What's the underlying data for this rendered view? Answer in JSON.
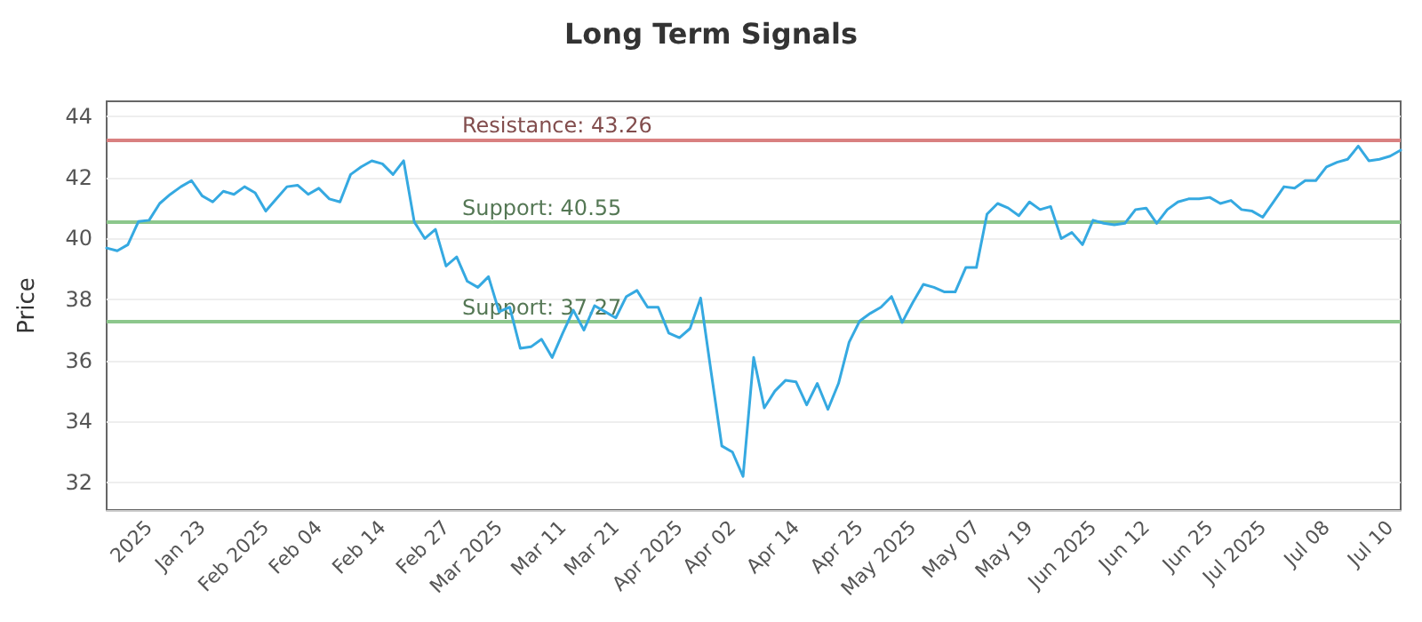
{
  "chart_data": {
    "type": "line",
    "title": "Long Term Signals",
    "ylabel": "Price",
    "categories": [
      null,
      null,
      null,
      null,
      "2025",
      null,
      null,
      null,
      null,
      "Jan 23",
      null,
      null,
      null,
      null,
      null,
      "Feb 2025",
      null,
      null,
      null,
      null,
      "Feb 04",
      null,
      null,
      null,
      null,
      null,
      "Feb 14",
      null,
      null,
      null,
      null,
      null,
      "Feb 27",
      null,
      null,
      null,
      null,
      "Mar 2025",
      null,
      null,
      null,
      null,
      null,
      "Mar 11",
      null,
      null,
      null,
      null,
      "Mar 21",
      null,
      null,
      null,
      null,
      null,
      "Apr 2025",
      null,
      null,
      null,
      null,
      "Apr 02",
      null,
      null,
      null,
      null,
      null,
      "Apr 14",
      null,
      null,
      null,
      null,
      null,
      "Apr 25",
      null,
      null,
      null,
      null,
      "May 2025",
      null,
      null,
      null,
      null,
      null,
      "May 07",
      null,
      null,
      null,
      null,
      "May 19",
      null,
      null,
      null,
      null,
      null,
      "Jun 2025",
      null,
      null,
      null,
      null,
      "Jun 12",
      null,
      null,
      null,
      null,
      null,
      "Jun 25",
      null,
      null,
      null,
      null,
      "Jul 2025",
      null,
      null,
      null,
      null,
      null,
      "Jul 08",
      null,
      null,
      null,
      null,
      null,
      "Jul 10",
      null
    ],
    "series": [
      {
        "color": "#35a9e1",
        "values": [
          39.69,
          39.6,
          39.8,
          40.56,
          40.6,
          41.15,
          41.45,
          41.7,
          41.9,
          41.4,
          41.2,
          41.55,
          41.45,
          41.7,
          41.5,
          40.9,
          41.3,
          41.7,
          41.75,
          41.45,
          41.65,
          41.3,
          41.2,
          42.1,
          42.35,
          42.55,
          42.45,
          42.1,
          42.55,
          40.55,
          40.0,
          40.3,
          39.1,
          39.4,
          38.6,
          38.4,
          38.75,
          37.6,
          37.75,
          36.4,
          36.45,
          36.7,
          36.1,
          36.9,
          37.65,
          37.0,
          37.8,
          37.6,
          37.4,
          38.1,
          38.3,
          37.75,
          37.75,
          36.9,
          36.75,
          37.05,
          38.05,
          35.6,
          33.2,
          33.0,
          32.2,
          36.1,
          34.45,
          35.0,
          35.35,
          35.3,
          34.55,
          35.25,
          34.4,
          35.25,
          36.6,
          37.3,
          37.55,
          37.75,
          38.1,
          37.25,
          37.9,
          38.5,
          38.4,
          38.25,
          38.25,
          39.05,
          39.05,
          40.8,
          41.15,
          41.0,
          40.75,
          41.2,
          40.95,
          41.05,
          40.0,
          40.2,
          39.8,
          40.6,
          40.5,
          40.45,
          40.5,
          40.95,
          41.0,
          40.5,
          40.95,
          41.2,
          41.3,
          41.3,
          41.35,
          41.15,
          41.25,
          40.95,
          40.9,
          40.7,
          41.2,
          41.7,
          41.65,
          41.9,
          41.9,
          42.35,
          42.5,
          42.6,
          43.03,
          42.55,
          42.6,
          42.7,
          42.9
        ]
      }
    ],
    "ylim": [
      31.1,
      44.5
    ],
    "yticks": [
      32,
      34,
      36,
      38,
      40,
      42,
      44
    ],
    "ref_lines": [
      {
        "axis": "y",
        "value": 43.26,
        "label": "Resistance: 43.26",
        "color": "#d98080"
      },
      {
        "axis": "y",
        "value": 40.55,
        "label": "Support: 40.55",
        "color": "#8cc78c"
      },
      {
        "axis": "y",
        "value": 37.27,
        "label": "Support: 37.27",
        "color": "#8cc78c"
      }
    ],
    "grid": "y",
    "marker": "none",
    "line_style": "solid"
  }
}
